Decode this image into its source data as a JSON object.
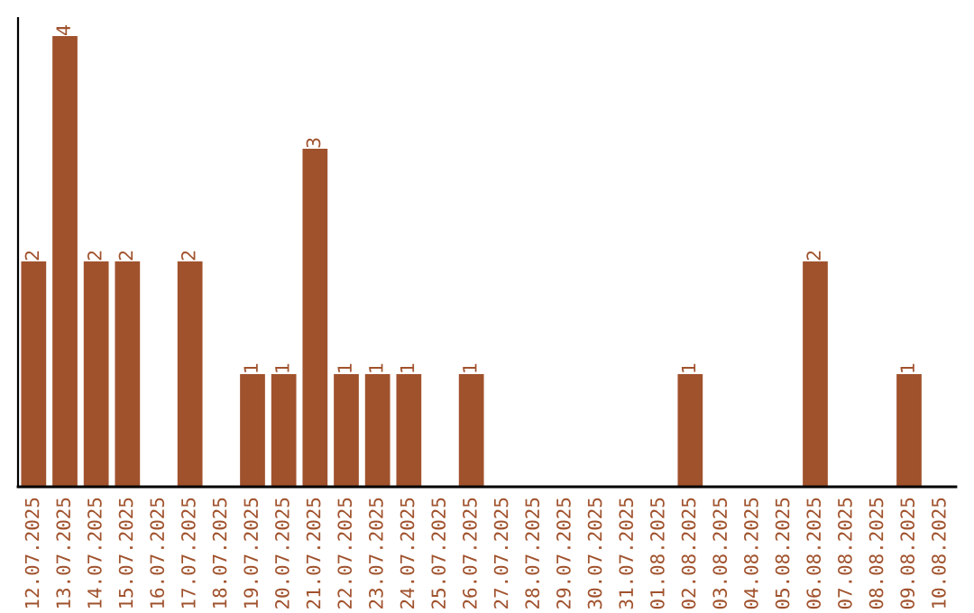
{
  "chart_data": {
    "type": "bar",
    "categories": [
      "12.07.2025",
      "13.07.2025",
      "14.07.2025",
      "15.07.2025",
      "16.07.2025",
      "17.07.2025",
      "18.07.2025",
      "19.07.2025",
      "20.07.2025",
      "21.07.2025",
      "22.07.2025",
      "23.07.2025",
      "24.07.2025",
      "25.07.2025",
      "26.07.2025",
      "27.07.2025",
      "28.07.2025",
      "29.07.2025",
      "30.07.2025",
      "31.07.2025",
      "01.08.2025",
      "02.08.2025",
      "03.08.2025",
      "04.08.2025",
      "05.08.2025",
      "06.08.2025",
      "07.08.2025",
      "08.08.2025",
      "09.08.2025",
      "10.08.2025"
    ],
    "values": [
      2,
      4,
      2,
      2,
      0,
      2,
      0,
      1,
      1,
      3,
      1,
      1,
      1,
      0,
      1,
      0,
      0,
      0,
      0,
      0,
      0,
      1,
      0,
      0,
      0,
      2,
      0,
      0,
      1,
      0
    ],
    "value_labels": [
      "2",
      "4",
      "2",
      "2",
      null,
      "2",
      null,
      "1",
      "1",
      "3",
      "1",
      "1",
      "1",
      null,
      "1",
      null,
      null,
      null,
      null,
      null,
      null,
      "1",
      null,
      null,
      null,
      "2",
      null,
      null,
      "1",
      null
    ],
    "color": "#a0522d",
    "ylim": [
      0,
      4.16
    ],
    "tick_labels": "x",
    "grid": false,
    "legend": false
  }
}
